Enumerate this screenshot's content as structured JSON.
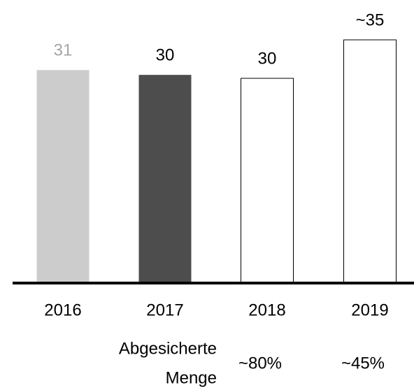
{
  "chart_data": {
    "type": "bar",
    "categories": [
      "2016",
      "2017",
      "2018",
      "2019"
    ],
    "values": [
      31,
      30.3,
      29.8,
      35.4
    ],
    "value_labels": [
      "31",
      "30",
      "30",
      "~35"
    ],
    "colors": [
      "#cccccc",
      "#4d4d4d",
      "#ffffff",
      "#ffffff"
    ],
    "edgecolors": [
      null,
      null,
      "#000000",
      "#000000"
    ],
    "label_colors": [
      "#a6a6a6",
      "#000000",
      "#000000",
      "#000000"
    ],
    "ylim": [
      0,
      41.2
    ],
    "secured_share": {
      "title": [
        "Abgesicherte",
        "Menge"
      ],
      "values": [
        null,
        null,
        80,
        45
      ],
      "value_labels": [
        null,
        null,
        "~80%",
        "~45%"
      ]
    }
  }
}
